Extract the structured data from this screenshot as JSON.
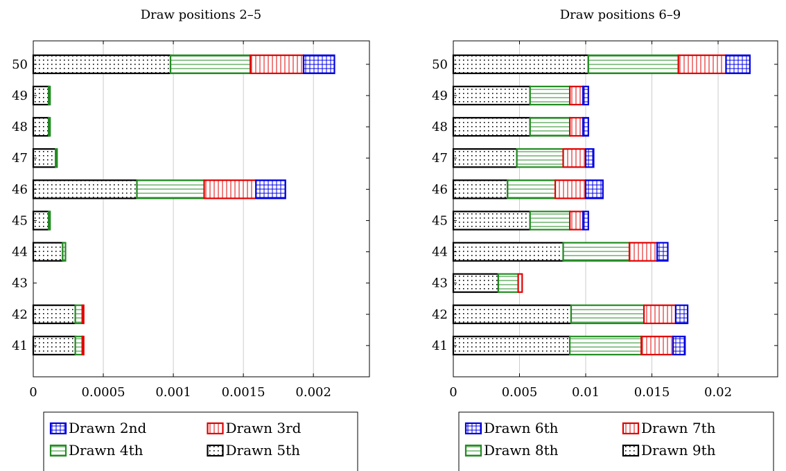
{
  "chart_data": [
    {
      "type": "bar",
      "orientation": "horizontal",
      "stacked": true,
      "title": "Draw positions 2–5",
      "categories": [
        "41",
        "42",
        "43",
        "44",
        "45",
        "46",
        "47",
        "48",
        "49",
        "50"
      ],
      "xlim": [
        0,
        0.0024
      ],
      "xticks": [
        {
          "value": 0,
          "label": "0"
        },
        {
          "value": 0.0005,
          "label": "0.0005"
        },
        {
          "value": 0.001,
          "label": "0.001"
        },
        {
          "value": 0.0015,
          "label": "0.0015"
        },
        {
          "value": 0.002,
          "label": "0.002"
        }
      ],
      "grid": "vertical",
      "series": [
        {
          "name": "Drawn 5th",
          "color": "#000000",
          "pattern": "dots",
          "values": [
            0.0003,
            0.0003,
            0,
            0.00021,
            0.00011,
            0.00074,
            0.00016,
            0.00011,
            0.00011,
            0.00098
          ]
        },
        {
          "name": "Drawn 4th",
          "color": "#228b22",
          "pattern": "hlines",
          "values": [
            5e-05,
            5e-05,
            0,
            2e-05,
            1e-05,
            0.00048,
            1e-05,
            1e-05,
            1e-05,
            0.00057
          ]
        },
        {
          "name": "Drawn 3rd",
          "color": "#e00000",
          "pattern": "vlines",
          "values": [
            1e-05,
            1e-05,
            0,
            0,
            0,
            0.00037,
            0,
            0,
            0,
            0.00038
          ]
        },
        {
          "name": "Drawn 2nd",
          "color": "#0000e0",
          "pattern": "grid",
          "values": [
            0,
            0,
            0,
            0,
            0,
            0.00021,
            0,
            0,
            0,
            0.00022
          ]
        }
      ],
      "legend": {
        "placement": "bottom",
        "order": [
          "Drawn 2nd",
          "Drawn 3rd",
          "Drawn 4th",
          "Drawn 5th"
        ]
      }
    },
    {
      "type": "bar",
      "orientation": "horizontal",
      "stacked": true,
      "title": "Draw positions 6–9",
      "categories": [
        "41",
        "42",
        "43",
        "44",
        "45",
        "46",
        "47",
        "48",
        "49",
        "50"
      ],
      "xlim": [
        0,
        0.0245
      ],
      "xticks": [
        {
          "value": 0,
          "label": "0"
        },
        {
          "value": 0.005,
          "label": "0.005"
        },
        {
          "value": 0.01,
          "label": "0.01"
        },
        {
          "value": 0.015,
          "label": "0.015"
        },
        {
          "value": 0.02,
          "label": "0.02"
        }
      ],
      "grid": "vertical",
      "series": [
        {
          "name": "Drawn 9th",
          "color": "#000000",
          "pattern": "dots",
          "values": [
            0.0088,
            0.0089,
            0.0034,
            0.0083,
            0.0058,
            0.0041,
            0.0048,
            0.0058,
            0.0058,
            0.0102
          ]
        },
        {
          "name": "Drawn 8th",
          "color": "#228b22",
          "pattern": "hlines",
          "values": [
            0.0054,
            0.0055,
            0.0015,
            0.005,
            0.003,
            0.0036,
            0.0035,
            0.003,
            0.003,
            0.0068
          ]
        },
        {
          "name": "Drawn 7th",
          "color": "#e00000",
          "pattern": "vlines",
          "values": [
            0.0024,
            0.0024,
            0.0003,
            0.0021,
            0.001,
            0.0023,
            0.0017,
            0.001,
            0.001,
            0.0036
          ]
        },
        {
          "name": "Drawn 6th",
          "color": "#0000e0",
          "pattern": "grid",
          "values": [
            0.0009,
            0.0009,
            0,
            0.0008,
            0.0004,
            0.0013,
            0.0006,
            0.0004,
            0.0004,
            0.0018
          ]
        }
      ],
      "legend": {
        "placement": "bottom",
        "order": [
          "Drawn 6th",
          "Drawn 7th",
          "Drawn 8th",
          "Drawn 9th"
        ]
      }
    }
  ]
}
